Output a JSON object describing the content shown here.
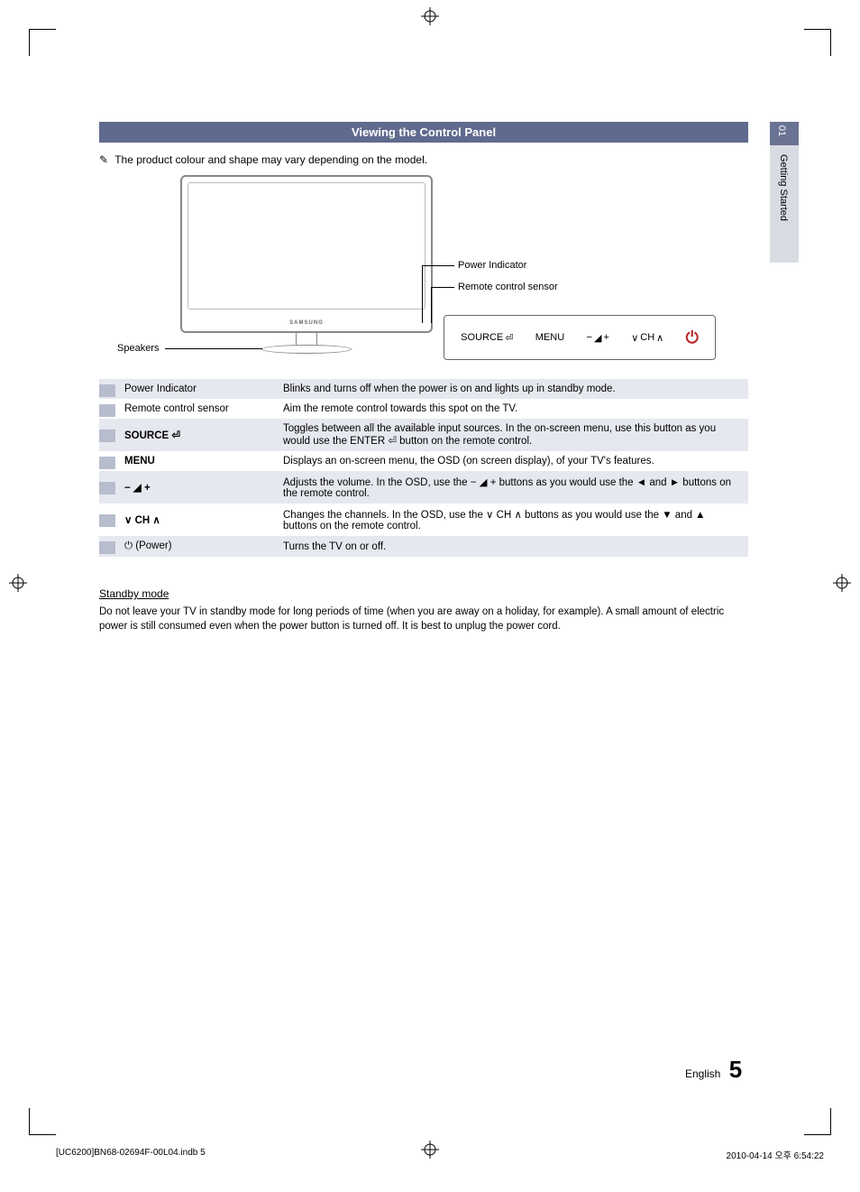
{
  "section_title": "Viewing the Control Panel",
  "note_text": "The product colour and shape may vary depending on the model.",
  "side_tab": {
    "number": "01",
    "label": "Getting Started"
  },
  "diagram": {
    "power_indicator_label": "Power Indicator",
    "remote_sensor_label": "Remote control sensor",
    "speakers_label": "Speakers",
    "brand": "SAMSUNG",
    "panel": {
      "source": "SOURCE",
      "menu": "MENU",
      "vol_minus": "−",
      "vol_plus": "+",
      "ch_down": "∨",
      "ch_label": "CH",
      "ch_up": "∧"
    }
  },
  "table_rows": [
    {
      "label": "Power Indicator",
      "bold": false,
      "desc": "Blinks and turns off when the power is on and lights up in standby mode."
    },
    {
      "label": "Remote control sensor",
      "bold": false,
      "desc": "Aim the remote control towards this spot on the TV."
    },
    {
      "label": "SOURCE ⏎",
      "bold": true,
      "desc": "Toggles between all the available input sources. In the on-screen menu, use this button as you would use the ENTER ⏎ button on the remote control."
    },
    {
      "label": "MENU",
      "bold": true,
      "desc": "Displays an on-screen menu, the OSD (on screen display), of your TV's features."
    },
    {
      "label": "− ◢ +",
      "bold": true,
      "desc": "Adjusts the volume. In the OSD, use the − ◢ + buttons as you would use the ◄ and ► buttons on the remote control."
    },
    {
      "label": "∨ CH ∧",
      "bold": true,
      "desc": "Changes the channels. In the OSD, use the ∨ CH ∧ buttons as you would use the ▼ and ▲ buttons on the remote control."
    },
    {
      "label": "⏻ (Power)",
      "bold": false,
      "desc": "Turns the TV on or off."
    }
  ],
  "standby": {
    "heading": "Standby mode",
    "text": "Do not leave your TV in standby mode for long periods of time (when you are away on a holiday, for example). A small amount of electric power is still consumed even when the power button is turned off. It is best to unplug the power cord."
  },
  "footer": {
    "language": "English",
    "page_number": "5",
    "print_left": "[UC6200]BN68-02694F-00L04.indb   5",
    "print_right": "2010-04-14   오후 6:54:22"
  },
  "colors": {
    "header_bg": "#5f6a8e",
    "shade_bg": "#e6e8ef",
    "marker_bg": "#b8bdcd",
    "tab_top_bg": "#6a7393",
    "tab_bottom_bg": "#d9dbe3",
    "power_color": "#b8282e"
  }
}
